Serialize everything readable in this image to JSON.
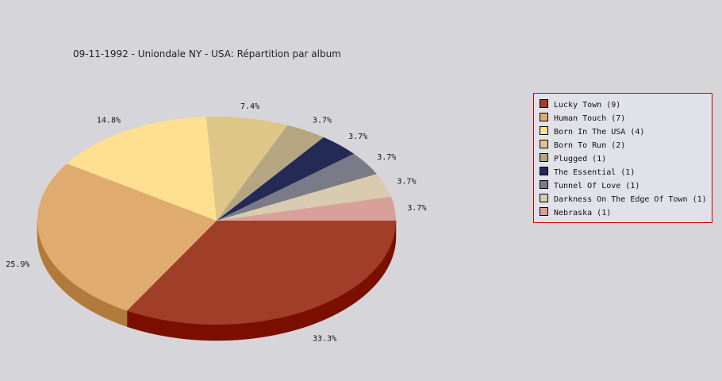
{
  "title": "09-11-1992 - Uniondale NY - USA:  Répartition par album",
  "chart_data": {
    "type": "pie",
    "title": "09-11-1992 - Uniondale NY - USA:  Répartition par album",
    "legend_position": "right",
    "slices": [
      {
        "label": "Lucky Town",
        "count": 9,
        "legend": "Lucky Town (9)",
        "pct": "33.3%",
        "value": 33.3,
        "color": "#a03e28",
        "side": "#7a0f00"
      },
      {
        "label": "Human Touch",
        "count": 7,
        "legend": "Human Touch (7)",
        "pct": "25.9%",
        "value": 25.9,
        "color": "#e0ab6e",
        "side": "#b07a3a"
      },
      {
        "label": "Born In The USA",
        "count": 4,
        "legend": "Born In The USA (4)",
        "pct": "14.8%",
        "value": 14.8,
        "color": "#ffdf90",
        "side": "#c8a850"
      },
      {
        "label": "Born To Run",
        "count": 2,
        "legend": "Born To Run (2)",
        "pct": "7.4%",
        "value": 7.4,
        "color": "#dec688",
        "side": "#a89050"
      },
      {
        "label": "Plugged",
        "count": 1,
        "legend": "Plugged (1)",
        "pct": "3.7%",
        "value": 3.7,
        "color": "#b5a681",
        "side": "#857650"
      },
      {
        "label": "The Essential",
        "count": 1,
        "legend": "The Essential (1)",
        "pct": "3.7%",
        "value": 3.7,
        "color": "#232a56",
        "side": "#101530"
      },
      {
        "label": "Tunnel Of Love",
        "count": 1,
        "legend": "Tunnel Of Love (1)",
        "pct": "3.7%",
        "value": 3.7,
        "color": "#7b7b88",
        "side": "#505060"
      },
      {
        "label": "Darkness On The Edge Of Town",
        "count": 1,
        "legend": "Darkness On The Edge Of Town (1)",
        "pct": "3.7%",
        "value": 3.7,
        "color": "#d8cbb0",
        "side": "#a89a80"
      },
      {
        "label": "Nebraska",
        "count": 1,
        "legend": "Nebraska (1)",
        "pct": "3.7%",
        "value": 3.7,
        "color": "#d9a099",
        "side": "#a87068"
      }
    ]
  }
}
